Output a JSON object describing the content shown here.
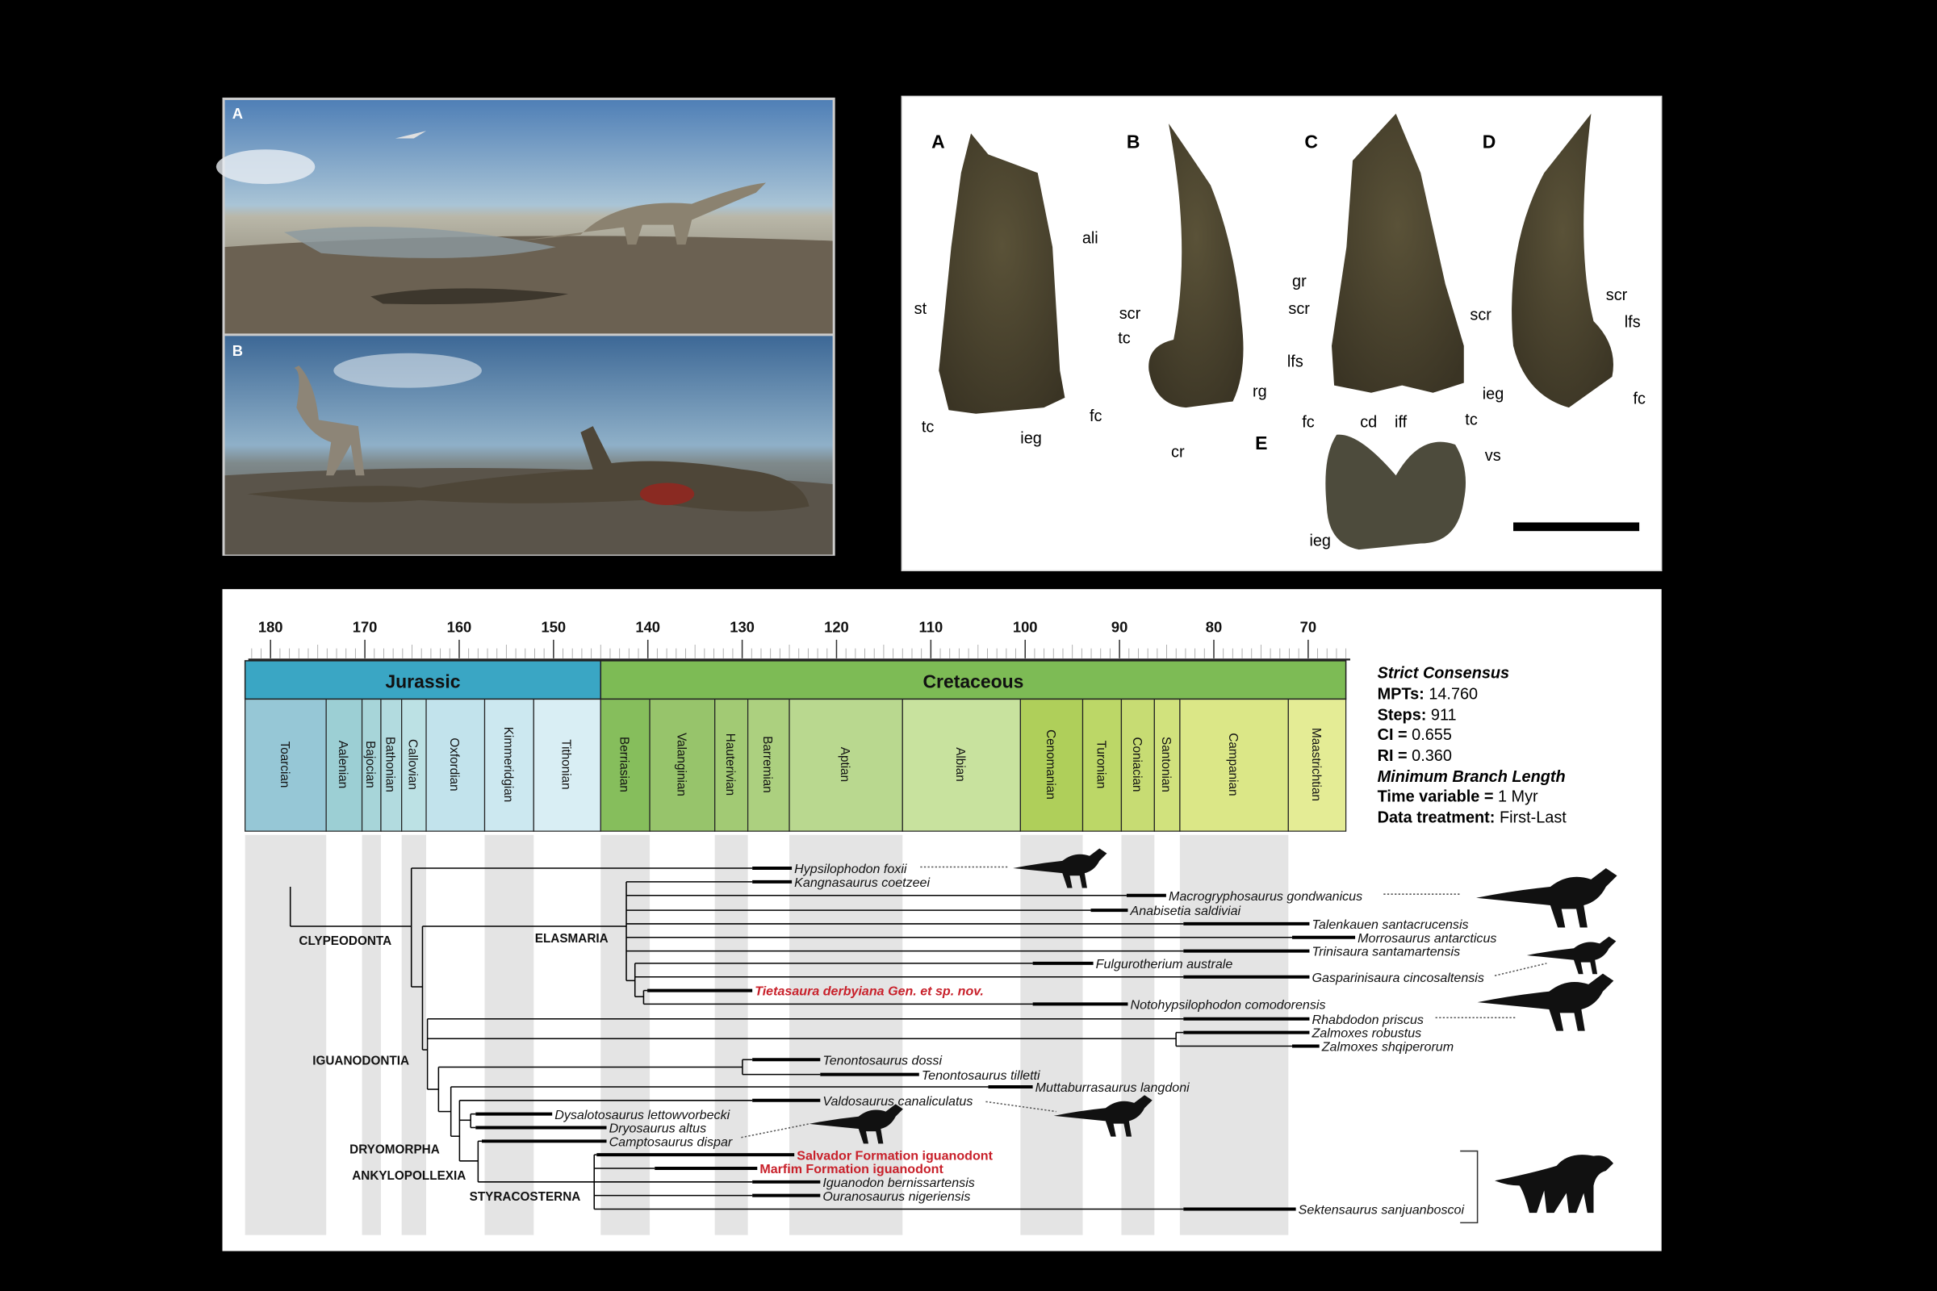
{
  "paintings": {
    "labels": [
      "A",
      "B"
    ]
  },
  "fossil_panel": {
    "view_labels": [
      "A",
      "B",
      "C",
      "D",
      "E"
    ],
    "anatomy_labels": [
      "ali",
      "st",
      "tc",
      "ieg",
      "fc",
      "scr",
      "tc",
      "rg",
      "cr",
      "gr",
      "scr",
      "lfs",
      "scr",
      "fc",
      "cd",
      "iff",
      "tc",
      "vs",
      "ieg",
      "scr",
      "lfs",
      "ieg",
      "fc"
    ]
  },
  "chart_data": {
    "type": "time-calibrated phylogeny",
    "xaxis": {
      "unit": "Ma",
      "ticks": [
        180,
        170,
        160,
        150,
        140,
        130,
        120,
        110,
        100,
        90,
        80,
        70
      ],
      "range": [
        182.7,
        66
      ],
      "reversed": true
    },
    "periods": [
      {
        "name": "Jurassic",
        "start": 182.7,
        "end": 145,
        "color": "#3aa6c4"
      },
      {
        "name": "Cretaceous",
        "start": 145,
        "end": 66,
        "color": "#7dbb55"
      }
    ],
    "stages": [
      {
        "name": "Toarcian",
        "start": 182.7,
        "end": 174.1,
        "color": "#96c7d6",
        "shaded": true
      },
      {
        "name": "Aalenian",
        "start": 174.1,
        "end": 170.3,
        "color": "#9ccfd4",
        "shaded": false
      },
      {
        "name": "Bajocian",
        "start": 170.3,
        "end": 168.3,
        "color": "#a7d5d9",
        "shaded": true
      },
      {
        "name": "Bathonian",
        "start": 168.3,
        "end": 166.1,
        "color": "#b2dbdf",
        "shaded": false
      },
      {
        "name": "Callovian",
        "start": 166.1,
        "end": 163.5,
        "color": "#bce1e4",
        "shaded": true
      },
      {
        "name": "Oxfordian",
        "start": 163.5,
        "end": 157.3,
        "color": "#c2e3ec",
        "shaded": false
      },
      {
        "name": "Kimmeridgian",
        "start": 157.3,
        "end": 152.1,
        "color": "#cce8f0",
        "shaded": true
      },
      {
        "name": "Tithonian",
        "start": 152.1,
        "end": 145,
        "color": "#d9eef4",
        "shaded": false
      },
      {
        "name": "Berriasian",
        "start": 145,
        "end": 139.8,
        "color": "#86be5c",
        "shaded": true
      },
      {
        "name": "Valanginian",
        "start": 139.8,
        "end": 132.9,
        "color": "#97c46b",
        "shaded": false
      },
      {
        "name": "Hauterivian",
        "start": 132.9,
        "end": 129.4,
        "color": "#a2ca74",
        "shaded": true
      },
      {
        "name": "Barremian",
        "start": 129.4,
        "end": 125,
        "color": "#acd07f",
        "shaded": false
      },
      {
        "name": "Aptian",
        "start": 125,
        "end": 113,
        "color": "#b9d88f",
        "shaded": true
      },
      {
        "name": "Albian",
        "start": 113,
        "end": 100.5,
        "color": "#c8e29e",
        "shaded": false
      },
      {
        "name": "Cenomanian",
        "start": 100.5,
        "end": 93.9,
        "color": "#afcf5a",
        "shaded": true
      },
      {
        "name": "Turonian",
        "start": 93.9,
        "end": 89.8,
        "color": "#bcd767",
        "shaded": false
      },
      {
        "name": "Coniacian",
        "start": 89.8,
        "end": 86.3,
        "color": "#c7dc73",
        "shaded": true
      },
      {
        "name": "Santonian",
        "start": 86.3,
        "end": 83.6,
        "color": "#d1e27d",
        "shaded": false
      },
      {
        "name": "Campanian",
        "start": 83.6,
        "end": 72.1,
        "color": "#dbe787",
        "shaded": true
      },
      {
        "name": "Maastrichtian",
        "start": 72.1,
        "end": 66,
        "color": "#e4ec95",
        "shaded": false
      }
    ],
    "taxa": [
      {
        "name": "Hypsilophodon foxii"
      },
      {
        "name": "Kangnasaurus coetzeei"
      },
      {
        "name": "Macrogryphosaurus gondwanicus"
      },
      {
        "name": "Anabisetia saldiviai"
      },
      {
        "name": "Talenkauen santacrucensis"
      },
      {
        "name": "Morrosaurus antarcticus"
      },
      {
        "name": "Trinisaura santamartensis"
      },
      {
        "name": "Fulgurotherium australe"
      },
      {
        "name": "Gasparinisaura cincosaltensis"
      },
      {
        "name": "Tietasaura derbyiana Gen. et sp. nov.",
        "highlight": true
      },
      {
        "name": "Notohypsilophodon comodorensis"
      },
      {
        "name": "Rhabdodon priscus"
      },
      {
        "name": "Zalmoxes robustus"
      },
      {
        "name": "Zalmoxes shqiperorum"
      },
      {
        "name": "Tenontosaurus dossi"
      },
      {
        "name": "Tenontosaurus tilletti"
      },
      {
        "name": "Muttaburrasaurus langdoni"
      },
      {
        "name": "Valdosaurus canaliculatus"
      },
      {
        "name": "Dysalotosaurus lettowvorbecki"
      },
      {
        "name": "Dryosaurus altus"
      },
      {
        "name": "Camptosaurus dispar"
      },
      {
        "name": "Salvador Formation iguanodont",
        "highlight": true
      },
      {
        "name": "Marfim Formation iguanodont",
        "highlight": true
      },
      {
        "name": "Iguanodon bernissartensis"
      },
      {
        "name": "Ouranosaurus nigeriensis"
      },
      {
        "name": "Sektensaurus sanjuanboscoi"
      }
    ],
    "clades": [
      "CLYPEODONTA",
      "ELASMARIA",
      "IGUANODONTIA",
      "DRYOMORPHA",
      "ANKYLOPOLLEXIA",
      "STYRACOSTERNA"
    ],
    "highlight_color": "#c8202a"
  },
  "stats": {
    "title": "Strict Consensus",
    "mpts_label": "MPTs:",
    "mpts": "14.760",
    "steps_label": "Steps:",
    "steps": "911",
    "ci_label": "CI =",
    "ci": "0.655",
    "ri_label": "RI =",
    "ri": "0.360",
    "method": "Minimum Branch Length",
    "time_label": "Time variable =",
    "time": "1 Myr",
    "treat_label": "Data treatment:",
    "treat": "First-Last"
  }
}
